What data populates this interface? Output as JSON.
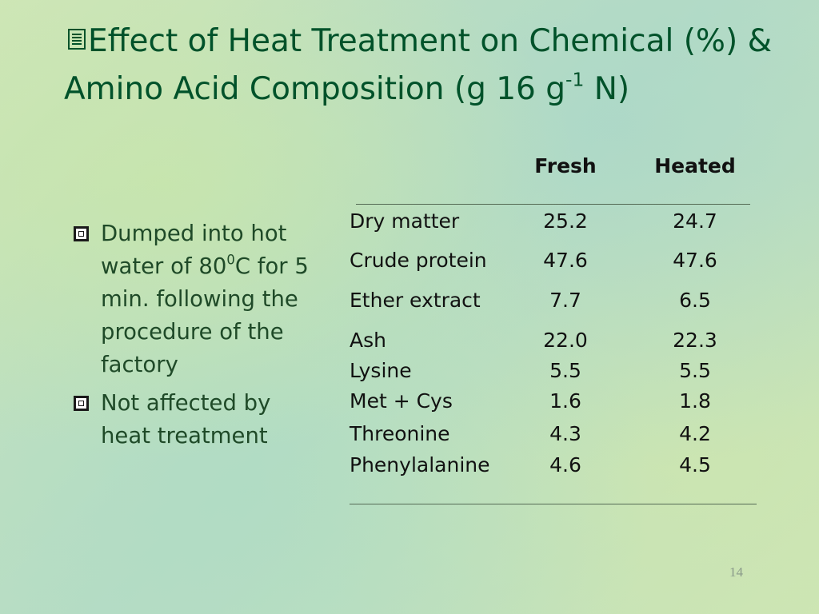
{
  "title": {
    "text": "Effect of Heat Treatment on Chemical (%) & Amino Acid Composition (g 16 g",
    "superscript": "-1",
    "suffix": " N)"
  },
  "bullets": [
    {
      "text": "Dumped into hot water of 80",
      "superscript": "0",
      "suffix": "C for 5 min. following the procedure of the factory"
    },
    {
      "text": "Not affected by heat treatment"
    }
  ],
  "table": {
    "header": [
      "Fresh",
      "Heated"
    ],
    "rows": [
      [
        "Dry matter",
        "25.2",
        "24.7"
      ],
      [
        "Crude protein",
        "47.6",
        "47.6"
      ],
      [
        "Ether extract",
        "7.7",
        "6.5"
      ],
      [
        "Ash",
        "22.0",
        "22.3"
      ],
      [
        "Lysine",
        "5.5",
        "5.5"
      ],
      [
        "Met + Cys",
        "1.6",
        "1.8"
      ],
      [
        "Threonine",
        "4.3",
        "4.2"
      ],
      [
        "Phenylalanine",
        "4.6",
        "4.5"
      ]
    ]
  },
  "page_number": "14"
}
